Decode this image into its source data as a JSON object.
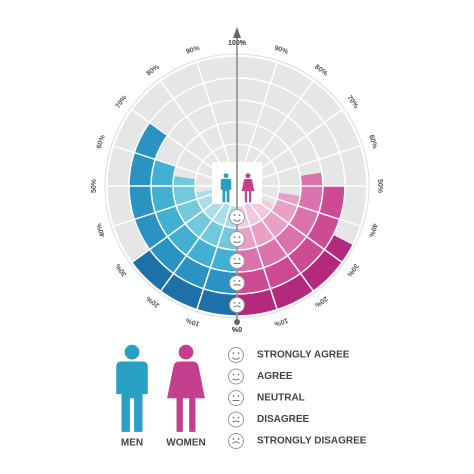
{
  "chart_data": {
    "type": "radial_bar",
    "categories": [
      "STRONGLY AGREE",
      "AGREE",
      "NEUTRAL",
      "DISAGREE",
      "STRONGLY DISAGREE"
    ],
    "series": [
      {
        "name": "MEN",
        "color": "#2a9fc4",
        "colors": [
          "#a8dde9",
          "#72c8dd",
          "#42b0d2",
          "#2a93c2",
          "#1d70a8"
        ],
        "values": [
          45,
          55,
          60,
          70,
          30
        ]
      },
      {
        "name": "WOMEN",
        "color": "#c43f8e",
        "colors": [
          "#f3c9de",
          "#e8a0c6",
          "#db72ad",
          "#cd4b95",
          "#b3297c"
        ],
        "values": [
          35,
          45,
          55,
          50,
          35
        ]
      }
    ],
    "ticks": [
      {
        "value": 0,
        "label": "0%"
      },
      {
        "value": 10,
        "label": "10%"
      },
      {
        "value": 20,
        "label": "20%"
      },
      {
        "value": 30,
        "label": "30%"
      },
      {
        "value": 40,
        "label": "40%"
      },
      {
        "value": 50,
        "label": "50%"
      },
      {
        "value": 60,
        "label": "60%"
      },
      {
        "value": 70,
        "label": "70%"
      },
      {
        "value": 80,
        "label": "80%"
      },
      {
        "value": 90,
        "label": "90%"
      },
      {
        "value": 100,
        "label": "100%"
      }
    ],
    "lim": [
      0,
      100
    ]
  }
}
